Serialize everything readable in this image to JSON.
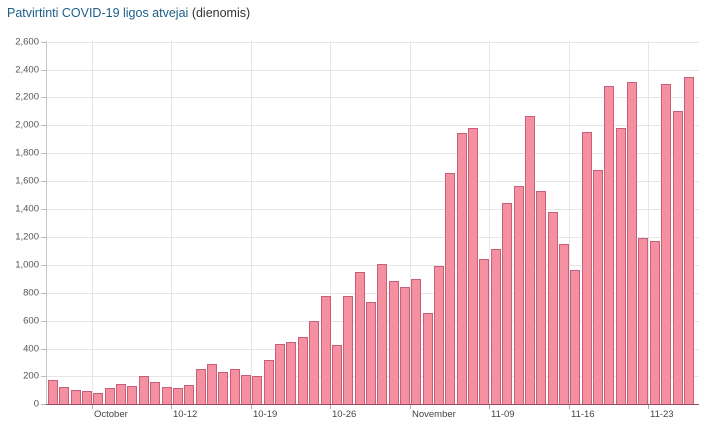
{
  "header": {
    "title_main": "Patvirtinti COVID-19 ligos atvejai",
    "title_sub": "(dienomis)"
  },
  "colors": {
    "bar_fill": "#f4909f",
    "bar_border": "#c65f79",
    "title": "#1b5e87"
  },
  "chart_data": {
    "type": "bar",
    "title": "Patvirtinti COVID-19 ligos atvejai (dienomis)",
    "xlabel": "",
    "ylabel": "",
    "ylim": [
      0,
      2600
    ],
    "grid": true,
    "legend": null,
    "y_ticks": [
      "0",
      "200",
      "400",
      "600",
      "800",
      "1,000",
      "1,200",
      "1,400",
      "1,600",
      "1,800",
      "2,000",
      "2,200",
      "2,400",
      "2,600"
    ],
    "x_ticks": [
      {
        "label": "October",
        "index": 4
      },
      {
        "label": "10-12",
        "index": 11
      },
      {
        "label": "10-19",
        "index": 18
      },
      {
        "label": "10-26",
        "index": 25
      },
      {
        "label": "November",
        "index": 32
      },
      {
        "label": "11-09",
        "index": 39
      },
      {
        "label": "11-16",
        "index": 46
      },
      {
        "label": "11-23",
        "index": 53
      }
    ],
    "categories": [
      "10-01",
      "10-02",
      "10-03",
      "10-04",
      "10-05",
      "10-06",
      "10-07",
      "10-08",
      "10-09",
      "10-10",
      "10-11",
      "10-12",
      "10-13",
      "10-14",
      "10-15",
      "10-16",
      "10-17",
      "10-18",
      "10-19",
      "10-20",
      "10-21",
      "10-22",
      "10-23",
      "10-24",
      "10-25",
      "10-26",
      "10-27",
      "10-28",
      "10-29",
      "10-30",
      "10-31",
      "11-01",
      "11-02",
      "11-03",
      "11-04",
      "11-05",
      "11-06",
      "11-07",
      "11-08",
      "11-09",
      "11-10",
      "11-11",
      "11-12",
      "11-13",
      "11-14",
      "11-15",
      "11-16",
      "11-17",
      "11-18",
      "11-19",
      "11-20",
      "11-21",
      "11-22",
      "11-23",
      "11-24",
      "11-25",
      "11-26"
    ],
    "values": [
      175,
      127,
      103,
      98,
      79,
      115,
      147,
      132,
      204,
      163,
      127,
      117,
      139,
      255,
      286,
      231,
      255,
      209,
      202,
      315,
      430,
      450,
      484,
      599,
      773,
      424,
      778,
      948,
      730,
      1007,
      885,
      840,
      897,
      655,
      995,
      1655,
      1945,
      1978,
      1040,
      1110,
      1440,
      1562,
      2067,
      1533,
      1380,
      1151,
      966,
      1952,
      1680,
      2280,
      1984,
      2314,
      1192,
      1174,
      2297,
      2106,
      2350
    ]
  }
}
